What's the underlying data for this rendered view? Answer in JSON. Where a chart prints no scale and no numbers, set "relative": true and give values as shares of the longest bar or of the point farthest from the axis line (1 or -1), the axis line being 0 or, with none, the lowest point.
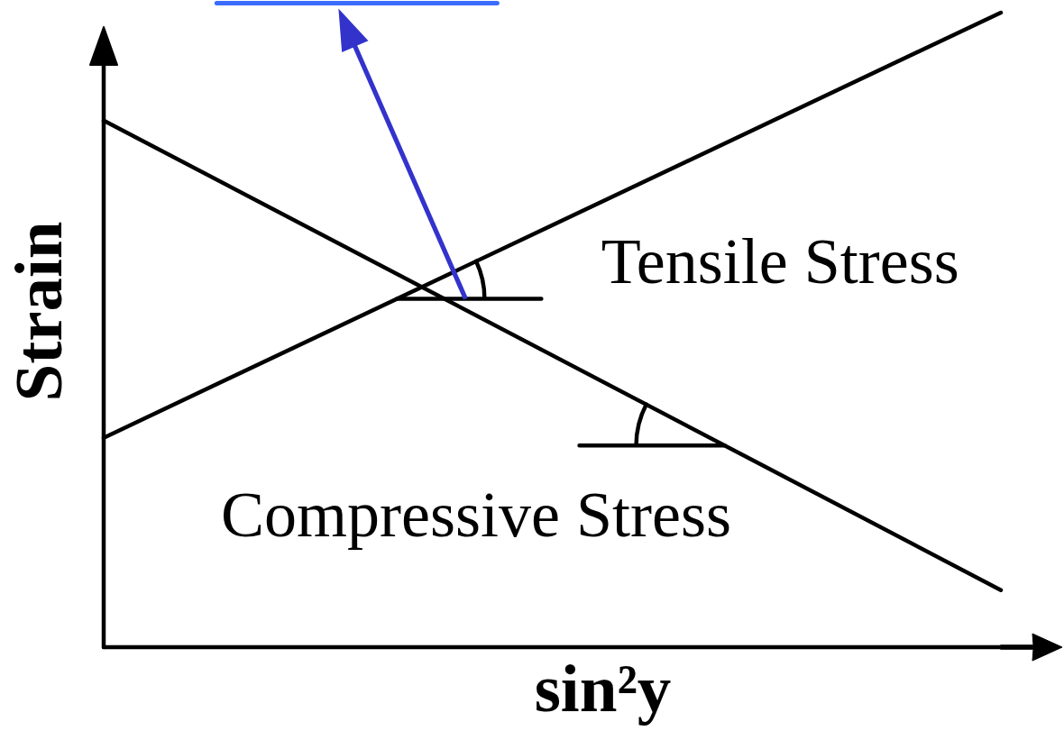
{
  "chart_data": {
    "type": "line",
    "relative": true,
    "xlabel": "sin²y",
    "ylabel": "Strain",
    "categories": [
      null,
      null
    ],
    "series": [
      {
        "color": "#000000",
        "values": [
          0.33,
          1
        ]
      },
      {
        "color": "#000000",
        "values": [
          0.83,
          0.09
        ]
      }
    ],
    "ref_lines": [
      {
        "axis": "y",
        "value": 0,
        "color": "#000000"
      }
    ],
    "annotations": [
      "Tensile Stress",
      "Compressive Stress"
    ]
  }
}
